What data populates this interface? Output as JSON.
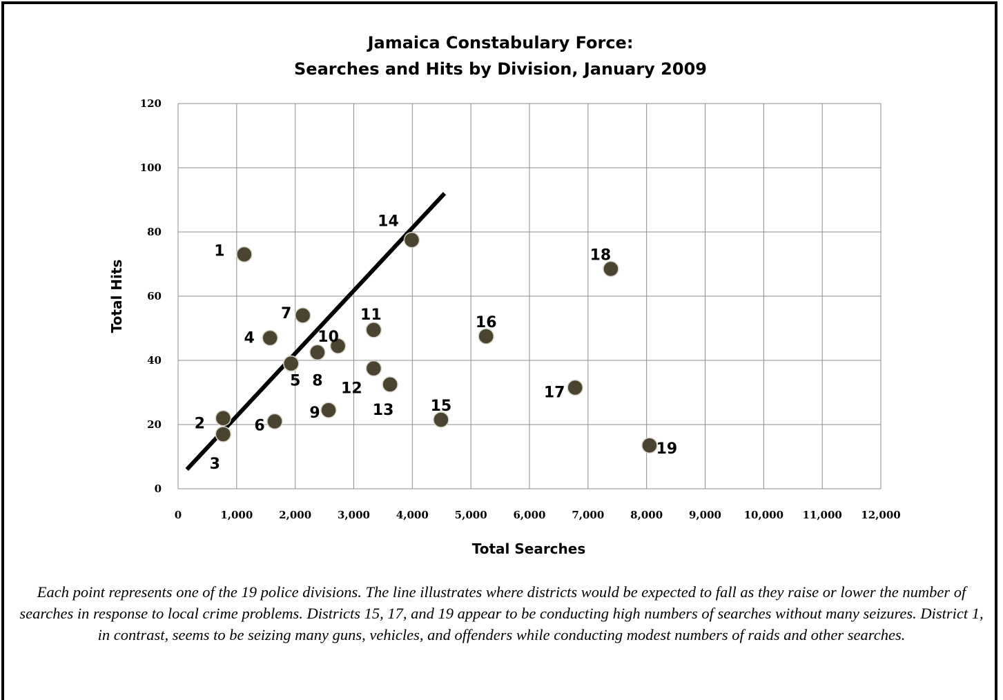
{
  "chart_data": {
    "type": "scatter",
    "title": [
      "Jamaica Constabulary Force:",
      "Searches and Hits by Division, January 2009"
    ],
    "xlabel": "Total Searches",
    "ylabel": "Total Hits",
    "xlim": [
      0,
      12000
    ],
    "ylim": [
      0,
      120
    ],
    "x_ticks": [
      0,
      1000,
      2000,
      3000,
      4000,
      5000,
      6000,
      7000,
      8000,
      9000,
      10000,
      11000,
      12000
    ],
    "x_tick_labels": [
      "0",
      "1,000",
      "2,000",
      "3,000",
      "4,000",
      "5,000",
      "6,000",
      "7,000",
      "8,000",
      "9,000",
      "10,000",
      "11,000",
      "12,000"
    ],
    "y_ticks": [
      0,
      20,
      40,
      60,
      80,
      100,
      120
    ],
    "y_tick_labels": [
      "0",
      "20",
      "40",
      "60",
      "80",
      "100",
      "120"
    ],
    "grid": true,
    "marker_color": "#4a4330",
    "points": [
      {
        "label": "1",
        "x": 1130,
        "y": 73
      },
      {
        "label": "2",
        "x": 770,
        "y": 22
      },
      {
        "label": "3",
        "x": 770,
        "y": 17
      },
      {
        "label": "4",
        "x": 1570,
        "y": 47
      },
      {
        "label": "5",
        "x": 1930,
        "y": 39
      },
      {
        "label": "6",
        "x": 1650,
        "y": 21
      },
      {
        "label": "7",
        "x": 2130,
        "y": 54
      },
      {
        "label": "8",
        "x": 2380,
        "y": 42.5
      },
      {
        "label": "9",
        "x": 2570,
        "y": 24.5
      },
      {
        "label": "10",
        "x": 2730,
        "y": 44.5
      },
      {
        "label": "11",
        "x": 3340,
        "y": 49.5
      },
      {
        "label": "12",
        "x": 3340,
        "y": 37.5
      },
      {
        "label": "13",
        "x": 3620,
        "y": 32.5
      },
      {
        "label": "14",
        "x": 3990,
        "y": 77.5
      },
      {
        "label": "15",
        "x": 4490,
        "y": 21.5
      },
      {
        "label": "16",
        "x": 5260,
        "y": 47.5
      },
      {
        "label": "17",
        "x": 6780,
        "y": 31.5
      },
      {
        "label": "18",
        "x": 7390,
        "y": 68.5
      },
      {
        "label": "19",
        "x": 8050,
        "y": 13.5
      }
    ],
    "trend_line": {
      "x": [
        150,
        4550
      ],
      "y": [
        6,
        92
      ],
      "color": "#000000"
    }
  },
  "caption": "Each point represents one of the 19 police divisions.  The line illustrates where districts would be expected to fall as they raise or lower the number of searches in response to local crime problems.  Districts 15, 17, and 19 appear to be conducting high numbers of searches without many seizures.  District 1, in contrast, seems to be seizing  many guns, vehicles, and offenders while conducting modest numbers of raids and other searches."
}
